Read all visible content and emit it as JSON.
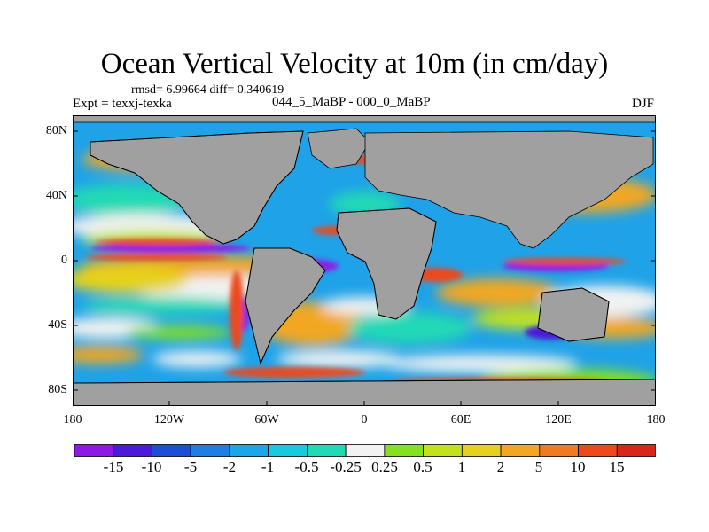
{
  "title": "Ocean Vertical Velocity at 10m (in cm/day)",
  "stats": "rmsd= 6.99664 diff= 0.340619",
  "experiment": "Expt = texxj-texka",
  "difference": "044_5_MaBP - 000_0_MaBP",
  "season": "DJF",
  "axes": {
    "y_ticks": [
      "80N",
      "40N",
      "0",
      "40S",
      "80S"
    ],
    "x_ticks": [
      "180",
      "120W",
      "60W",
      "0",
      "60E",
      "120E",
      "180"
    ]
  },
  "colorbar": {
    "labels": [
      "-15",
      "-10",
      "-5",
      "-2",
      "-1",
      "-0.5",
      "-0.25",
      "0.25",
      "0.5",
      "1",
      "2",
      "5",
      "10",
      "15"
    ],
    "colors": [
      "#8c1ae6",
      "#4b19d9",
      "#1f4ed6",
      "#1e7ee6",
      "#19a7ea",
      "#19c9dc",
      "#22d9b5",
      "#f2f2f2",
      "#84e020",
      "#c2e21c",
      "#e6d21e",
      "#f2a724",
      "#f07a22",
      "#ec4a1c",
      "#d8261a"
    ]
  },
  "map_colors": {
    "land": "#a0a0a0",
    "ocean_base": "#1fa2e8",
    "coast": "#000000"
  }
}
